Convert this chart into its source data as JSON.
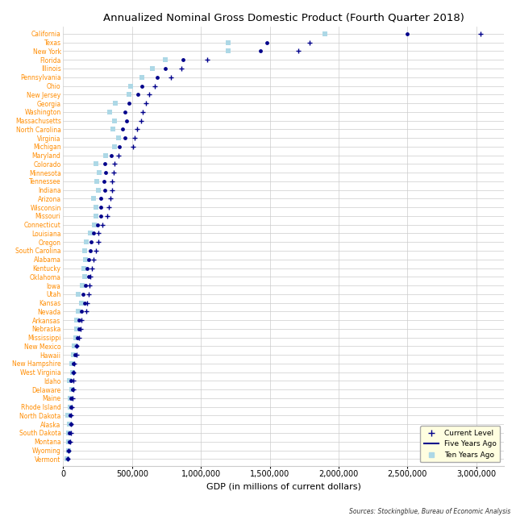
{
  "title": "Annualized Nominal Gross Domestic Product (Fourth Quarter 2018)",
  "xlabel": "GDP (in millions of current dollars)",
  "source": "Sources: Stockingblue, Bureau of Economic Analysis",
  "states": [
    "California",
    "Texas",
    "New York",
    "Florida",
    "Illinois",
    "Pennsylvania",
    "Ohio",
    "New Jersey",
    "Georgia",
    "Washington",
    "Massachusetts",
    "North Carolina",
    "Virginia",
    "Michigan",
    "Maryland",
    "Colorado",
    "Minnesota",
    "Tennessee",
    "Indiana",
    "Arizona",
    "Wisconsin",
    "Missouri",
    "Connecticut",
    "Louisiana",
    "Oregon",
    "South Carolina",
    "Alabama",
    "Kentucky",
    "Oklahoma",
    "Iowa",
    "Utah",
    "Kansas",
    "Nevada",
    "Arkansas",
    "Nebraska",
    "Mississippi",
    "New Mexico",
    "Hawaii",
    "New Hampshire",
    "West Virginia",
    "Idaho",
    "Delaware",
    "Maine",
    "Rhode Island",
    "North Dakota",
    "Alaska",
    "South Dakota",
    "Montana",
    "Wyoming",
    "Vermont"
  ],
  "current": [
    3031000,
    1787000,
    1706000,
    1048000,
    857000,
    780000,
    664000,
    622000,
    602000,
    578000,
    563000,
    535000,
    520000,
    506000,
    404000,
    370000,
    367000,
    357000,
    356000,
    341000,
    333000,
    320000,
    282000,
    255000,
    253000,
    236000,
    221000,
    209000,
    196000,
    191000,
    183000,
    174000,
    165000,
    130000,
    126000,
    115000,
    100000,
    97000,
    82000,
    76000,
    74000,
    73000,
    67000,
    64000,
    55000,
    54000,
    54000,
    50000,
    41000,
    34000
  ],
  "five_years_ago": [
    2500000,
    1480000,
    1430000,
    870000,
    740000,
    680000,
    570000,
    540000,
    480000,
    450000,
    460000,
    430000,
    450000,
    410000,
    350000,
    300000,
    305000,
    295000,
    300000,
    270000,
    275000,
    270000,
    250000,
    220000,
    205000,
    195000,
    185000,
    175000,
    185000,
    160000,
    145000,
    155000,
    135000,
    115000,
    114000,
    103000,
    95000,
    85000,
    72000,
    72000,
    58000,
    68000,
    58000,
    56000,
    52000,
    55000,
    46000,
    44000,
    40000,
    30000
  ],
  "ten_years_ago": [
    1900000,
    1200000,
    1200000,
    740000,
    650000,
    570000,
    490000,
    480000,
    380000,
    340000,
    370000,
    360000,
    400000,
    370000,
    310000,
    240000,
    260000,
    245000,
    255000,
    220000,
    240000,
    235000,
    225000,
    195000,
    170000,
    155000,
    160000,
    150000,
    155000,
    140000,
    110000,
    135000,
    110000,
    100000,
    98000,
    90000,
    80000,
    72000,
    62000,
    65000,
    46000,
    60000,
    50000,
    49000,
    35000,
    47000,
    40000,
    36000,
    38000,
    28000
  ],
  "current_color": "#00008B",
  "five_years_color": "#00008B",
  "ten_years_color": "#ADD8E6",
  "bg_color": "#FFFFFF",
  "label_color_orange": "#FF8C00",
  "grid_color": "#CCCCCC",
  "xlim": [
    0,
    3200000
  ],
  "xticks": [
    0,
    500000,
    1000000,
    1500000,
    2000000,
    2500000,
    3000000
  ],
  "xtick_labels": [
    "0",
    "500,000",
    "1,000,000",
    "1,500,000",
    "2,000,000",
    "2,500,000",
    "3,000,000"
  ]
}
